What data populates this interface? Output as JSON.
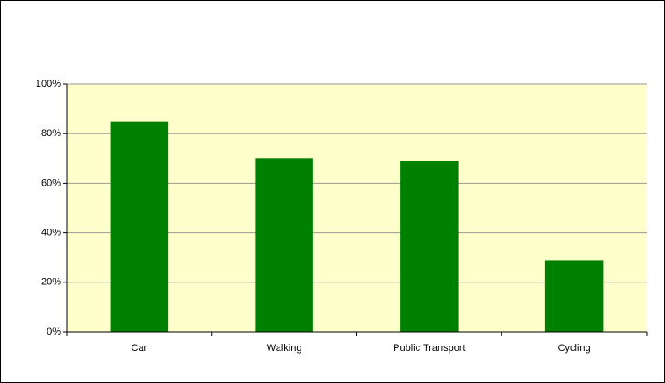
{
  "chart_data": {
    "type": "bar",
    "categories": [
      "Car",
      "Walking",
      "Public Transport",
      "Cycling"
    ],
    "values": [
      85,
      70,
      69,
      29
    ],
    "color": "#008000",
    "ylim": [
      0,
      100
    ],
    "yticks": [
      {
        "value": 0,
        "label": "0%"
      },
      {
        "value": 20,
        "label": "20%"
      },
      {
        "value": 40,
        "label": "40%"
      },
      {
        "value": 60,
        "label": "60%"
      },
      {
        "value": 80,
        "label": "80%"
      },
      {
        "value": 100,
        "label": "100%"
      }
    ],
    "grid": true
  }
}
